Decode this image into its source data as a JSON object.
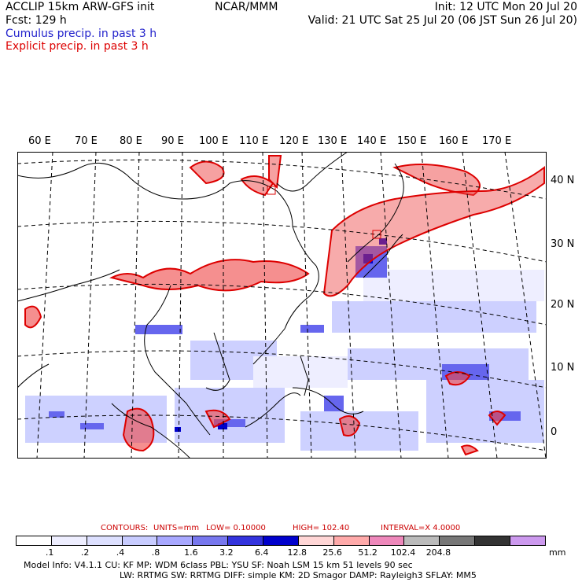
{
  "header": {
    "left1": "ACCLIP 15km ARW-GFS init",
    "left2": "Fcst:   129 h",
    "center": "NCAR/MMM",
    "right1": "Init: 12 UTC Mon 20 Jul 20",
    "right2": "Valid: 21 UTC Sat 25 Jul 20 (06 JST Sun 26 Jul 20)",
    "legend_cumulus": "Cumulus precip. in past 3 h",
    "legend_explicit": "Explicit precip. in past 3 h",
    "cumulus_color": "#2222cc",
    "explicit_color": "#dd0000"
  },
  "lon_labels": [
    "60 E",
    "70 E",
    "80 E",
    "90 E",
    "100 E",
    "110 E",
    "120 E",
    "130 E",
    "140 E",
    "150 E",
    "160 E",
    "170 E"
  ],
  "lat_labels": [
    "40 N",
    "30 N",
    "20 N",
    "10 N",
    "0"
  ],
  "contours": {
    "c_label": "CONTOURS:",
    "units": "UNITS=mm",
    "low": "LOW=  0.10000",
    "high": "HIGH=   102.40",
    "interval": "INTERVAL=X   4.0000"
  },
  "colorbar": {
    "colors": [
      "#ffffff",
      "#eeeeff",
      "#dde0ff",
      "#c8ccff",
      "#a8a8ff",
      "#7777ee",
      "#3333dd",
      "#0000cc",
      "#ffd6d6",
      "#ffaaaa",
      "#ee88bb",
      "#bbbbbb",
      "#777777",
      "#333333",
      "#cc99ee"
    ],
    "labels": [
      ".1",
      ".2",
      ".4",
      ".8",
      "1.6",
      "3.2",
      "6.4",
      "12.8",
      "25.6",
      "51.2",
      "102.4",
      "204.8"
    ],
    "unit": "mm"
  },
  "model_info": {
    "line1": "Model Info: V4.1.1      CU: KF        MP: WDM 6class   PBL: YSU        SF: Noah LSM       15 km    51 levels   90 sec",
    "line2": "LW: RRTMG    SW: RRTMG   DIFF: simple KM: 2D Smagor DAMP: Rayleigh3  SFLAY: MM5"
  }
}
